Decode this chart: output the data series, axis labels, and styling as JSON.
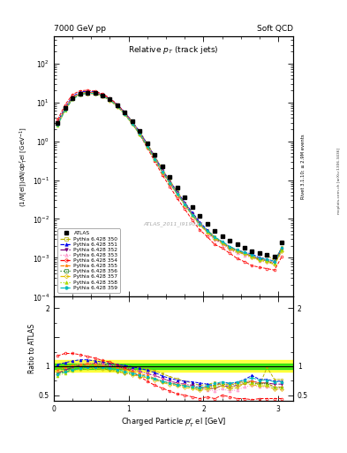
{
  "title_left": "7000 GeV pp",
  "title_right": "Soft QCD",
  "plot_title": "Relative p$_{T}$ (track jets)",
  "ylabel_main": "(1/N[el])dN/dp$^{r}_{T}$ el [GeV$^{-1}$]",
  "ylabel_ratio": "Ratio to ATLAS",
  "xlabel": "Charged Particle p$^{r}_{T}$ el [GeV]",
  "right_label_main": "Rivet 3.1.10; ≥ 2.9M events",
  "watermark": "ATLAS_2011_I919017",
  "mcplots_label": "mcplots.cern.ch [arXiv:1306.3436]",
  "xlim": [
    0,
    3.2
  ],
  "ylim_main": [
    0.0001,
    500
  ],
  "ylim_ratio": [
    0.4,
    2.2
  ],
  "x_data": [
    0.05,
    0.15,
    0.25,
    0.35,
    0.45,
    0.55,
    0.65,
    0.75,
    0.85,
    0.95,
    1.05,
    1.15,
    1.25,
    1.35,
    1.45,
    1.55,
    1.65,
    1.75,
    1.85,
    1.95,
    2.05,
    2.15,
    2.25,
    2.35,
    2.45,
    2.55,
    2.65,
    2.75,
    2.85,
    2.95,
    3.05
  ],
  "atlas_y": [
    3.0,
    7.0,
    13.0,
    16.5,
    17.5,
    17.0,
    15.0,
    12.0,
    8.5,
    5.5,
    3.2,
    1.8,
    0.9,
    0.45,
    0.22,
    0.12,
    0.065,
    0.036,
    0.02,
    0.012,
    0.0075,
    0.005,
    0.0036,
    0.0028,
    0.0022,
    0.0018,
    0.0015,
    0.0013,
    0.0012,
    0.0011,
    0.0025
  ],
  "series": [
    {
      "label": "Pythia 6.428 350",
      "color": "#b8b000",
      "linestyle": "--",
      "marker": "s",
      "fillstyle": "none",
      "ratio": [
        1.0,
        1.0,
        1.02,
        1.02,
        1.02,
        1.01,
        1.01,
        1.0,
        1.0,
        1.0,
        0.99,
        0.97,
        0.95,
        0.92,
        0.87,
        0.82,
        0.78,
        0.74,
        0.71,
        0.67,
        0.68,
        0.72,
        0.67,
        0.6,
        0.63,
        0.7,
        0.74,
        0.67,
        0.98,
        0.77,
        0.77
      ]
    },
    {
      "label": "Pythia 6.428 351",
      "color": "#0000ee",
      "linestyle": "--",
      "marker": "^",
      "fillstyle": "full",
      "ratio": [
        1.03,
        1.06,
        1.09,
        1.11,
        1.11,
        1.09,
        1.07,
        1.05,
        1.03,
        1.01,
        0.99,
        0.96,
        0.93,
        0.89,
        0.83,
        0.79,
        0.76,
        0.74,
        0.73,
        0.71,
        0.69,
        0.66,
        0.73,
        0.7,
        0.72,
        0.77,
        0.84,
        0.77,
        0.77,
        0.74,
        0.74
      ]
    },
    {
      "label": "Pythia 6.428 352",
      "color": "#7b007b",
      "linestyle": "-.",
      "marker": "v",
      "fillstyle": "full",
      "ratio": [
        0.88,
        0.93,
        0.98,
        1.01,
        1.04,
        1.05,
        1.04,
        1.01,
        0.99,
        0.97,
        0.94,
        0.91,
        0.87,
        0.84,
        0.79,
        0.74,
        0.71,
        0.69,
        0.67,
        0.64,
        0.62,
        0.61,
        0.67,
        0.64,
        0.67,
        0.71,
        0.74,
        0.71,
        0.71,
        0.69,
        0.69
      ]
    },
    {
      "label": "Pythia 6.428 353",
      "color": "#ff80c0",
      "linestyle": ":",
      "marker": "^",
      "fillstyle": "none",
      "ratio": [
        0.93,
        0.98,
        1.01,
        1.04,
        1.05,
        1.05,
        1.04,
        1.01,
        0.99,
        0.97,
        0.94,
        0.91,
        0.87,
        0.84,
        0.79,
        0.74,
        0.71,
        0.69,
        0.64,
        0.61,
        0.59,
        0.57,
        0.61,
        0.57,
        0.59,
        0.64,
        0.67,
        0.64,
        0.64,
        0.61,
        0.61
      ]
    },
    {
      "label": "Pythia 6.428 354",
      "color": "#ff0000",
      "linestyle": "--",
      "marker": "o",
      "fillstyle": "none",
      "ratio": [
        1.18,
        1.22,
        1.22,
        1.2,
        1.17,
        1.14,
        1.1,
        1.07,
        1.02,
        0.97,
        0.9,
        0.82,
        0.74,
        0.67,
        0.62,
        0.57,
        0.52,
        0.5,
        0.47,
        0.44,
        0.47,
        0.44,
        0.5,
        0.47,
        0.44,
        0.44,
        0.42,
        0.44,
        0.44,
        0.44,
        0.44
      ]
    },
    {
      "label": "Pythia 6.428 355",
      "color": "#ff8000",
      "linestyle": "--",
      "marker": "*",
      "fillstyle": "full",
      "ratio": [
        0.93,
        0.98,
        1.01,
        1.03,
        1.04,
        1.03,
        1.01,
        0.99,
        0.97,
        0.94,
        0.91,
        0.87,
        0.84,
        0.79,
        0.74,
        0.71,
        0.69,
        0.67,
        0.64,
        0.61,
        0.64,
        0.67,
        0.71,
        0.67,
        0.71,
        0.74,
        0.74,
        0.71,
        0.71,
        0.64,
        0.64
      ]
    },
    {
      "label": "Pythia 6.428 356",
      "color": "#208020",
      "linestyle": ":",
      "marker": "s",
      "fillstyle": "none",
      "ratio": [
        0.88,
        0.91,
        0.94,
        0.96,
        0.98,
        0.98,
        0.96,
        0.94,
        0.91,
        0.88,
        0.86,
        0.83,
        0.8,
        0.78,
        0.73,
        0.7,
        0.68,
        0.66,
        0.63,
        0.6,
        0.63,
        0.66,
        0.7,
        0.66,
        0.7,
        0.73,
        0.7,
        0.7,
        0.7,
        0.63,
        0.63
      ]
    },
    {
      "label": "Pythia 6.428 357",
      "color": "#e0c000",
      "linestyle": "--",
      "marker": "D",
      "fillstyle": "none",
      "ratio": [
        0.86,
        0.9,
        0.93,
        0.95,
        0.96,
        0.96,
        0.95,
        0.93,
        0.9,
        0.88,
        0.85,
        0.82,
        0.8,
        0.76,
        0.72,
        0.68,
        0.66,
        0.63,
        0.61,
        0.58,
        0.6,
        0.63,
        0.66,
        0.63,
        0.66,
        0.7,
        0.68,
        0.66,
        0.66,
        0.6,
        0.6
      ]
    },
    {
      "label": "Pythia 6.428 358",
      "color": "#aadd00",
      "linestyle": ":",
      "marker": "^",
      "fillstyle": "full",
      "ratio": [
        0.83,
        0.88,
        0.92,
        0.95,
        0.97,
        0.98,
        0.97,
        0.95,
        0.92,
        0.9,
        0.87,
        0.84,
        0.81,
        0.78,
        0.74,
        0.7,
        0.68,
        0.66,
        0.63,
        0.61,
        0.63,
        0.66,
        0.7,
        0.68,
        0.7,
        0.73,
        0.7,
        0.68,
        0.68,
        0.63,
        0.63
      ]
    },
    {
      "label": "Pythia 6.428 359",
      "color": "#00bbbb",
      "linestyle": "--",
      "marker": "o",
      "fillstyle": "full",
      "ratio": [
        0.86,
        0.9,
        0.93,
        0.96,
        0.98,
        0.99,
        0.98,
        0.96,
        0.94,
        0.91,
        0.88,
        0.85,
        0.82,
        0.78,
        0.74,
        0.71,
        0.68,
        0.66,
        0.64,
        0.63,
        0.66,
        0.7,
        0.73,
        0.7,
        0.73,
        0.76,
        0.8,
        0.76,
        0.76,
        0.73,
        0.73
      ]
    }
  ],
  "band_yellow": [
    0.9,
    1.1
  ],
  "band_green": [
    0.95,
    1.05
  ]
}
